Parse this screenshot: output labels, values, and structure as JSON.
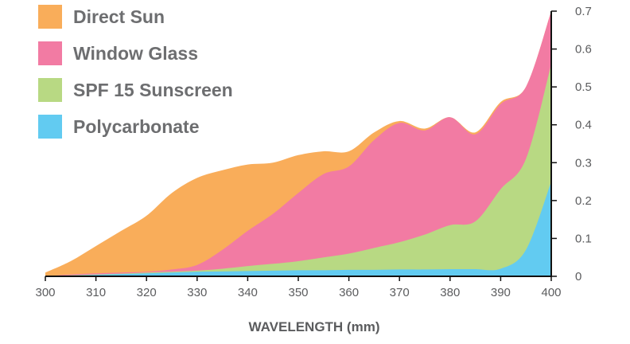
{
  "chart_data": {
    "type": "area",
    "stacked": false,
    "xlabel": "WAVELENGTH (mm)",
    "ylabel": "",
    "xlim": [
      300,
      400
    ],
    "ylim": [
      0,
      0.7
    ],
    "xticks": [
      "300",
      "310",
      "320",
      "330",
      "340",
      "350",
      "360",
      "370",
      "380",
      "390",
      "400"
    ],
    "yticks": [
      "0",
      "0.1",
      "0.2",
      "0.3",
      "0.4",
      "0.5",
      "0.6",
      "0.7"
    ],
    "y_axis_position": "right",
    "grid": false,
    "legend_position": "top-left",
    "x": [
      300,
      305,
      310,
      315,
      320,
      325,
      330,
      335,
      340,
      345,
      350,
      355,
      360,
      365,
      370,
      375,
      380,
      385,
      390,
      395,
      400
    ],
    "series": [
      {
        "name": "Direct Sun",
        "color": "#f9ad5a",
        "values": [
          0.01,
          0.04,
          0.08,
          0.12,
          0.16,
          0.22,
          0.26,
          0.28,
          0.295,
          0.3,
          0.32,
          0.33,
          0.33,
          0.38,
          0.41,
          0.39,
          0.42,
          0.38,
          0.46,
          0.5,
          0.7
        ]
      },
      {
        "name": "Window Glass",
        "color": "#f27ba3",
        "values": [
          0.0,
          0.005,
          0.008,
          0.01,
          0.012,
          0.018,
          0.03,
          0.07,
          0.12,
          0.165,
          0.22,
          0.27,
          0.29,
          0.36,
          0.405,
          0.385,
          0.42,
          0.375,
          0.455,
          0.5,
          0.7
        ]
      },
      {
        "name": "SPF 15 Sunscreen",
        "color": "#b8d983",
        "values": [
          0.0,
          0.003,
          0.005,
          0.007,
          0.01,
          0.012,
          0.015,
          0.02,
          0.027,
          0.033,
          0.04,
          0.05,
          0.06,
          0.075,
          0.09,
          0.11,
          0.135,
          0.145,
          0.23,
          0.31,
          0.56
        ]
      },
      {
        "name": "Polycarbonate",
        "color": "#62cbf1",
        "values": [
          0.0,
          0.002,
          0.004,
          0.006,
          0.008,
          0.01,
          0.012,
          0.013,
          0.014,
          0.015,
          0.016,
          0.016,
          0.017,
          0.017,
          0.018,
          0.018,
          0.019,
          0.019,
          0.02,
          0.07,
          0.25
        ]
      }
    ]
  }
}
